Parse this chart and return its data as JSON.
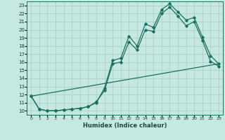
{
  "xlabel": "Humidex (Indice chaleur)",
  "xlim": [
    -0.5,
    23.5
  ],
  "ylim": [
    9.5,
    23.5
  ],
  "xticks": [
    0,
    1,
    2,
    3,
    4,
    5,
    6,
    7,
    8,
    9,
    10,
    11,
    12,
    13,
    14,
    15,
    16,
    17,
    18,
    19,
    20,
    21,
    22,
    23
  ],
  "yticks": [
    10,
    11,
    12,
    13,
    14,
    15,
    16,
    17,
    18,
    19,
    20,
    21,
    22,
    23
  ],
  "bg_color": "#c5e8e0",
  "line_color": "#1a7060",
  "grid_color": "#a8ccc4",
  "line1_x": [
    0,
    1,
    2,
    3,
    4,
    5,
    6,
    7,
    8,
    9,
    10,
    11,
    12,
    13,
    14,
    15,
    16,
    17,
    18,
    19,
    20,
    21,
    22,
    23
  ],
  "line1_y": [
    11.8,
    10.2,
    10.0,
    10.0,
    10.1,
    10.2,
    10.3,
    10.5,
    11.0,
    12.8,
    16.2,
    16.5,
    19.2,
    18.0,
    20.7,
    20.3,
    22.5,
    23.2,
    22.2,
    21.2,
    21.5,
    19.1,
    16.8,
    15.8
  ],
  "line2_x": [
    0,
    1,
    2,
    3,
    4,
    5,
    6,
    7,
    8,
    9,
    10,
    11,
    12,
    13,
    14,
    15,
    16,
    17,
    18,
    19,
    20,
    21,
    22,
    23
  ],
  "line2_y": [
    11.8,
    10.2,
    10.0,
    10.0,
    10.1,
    10.2,
    10.3,
    10.5,
    11.1,
    12.5,
    15.8,
    16.0,
    18.5,
    17.5,
    20.0,
    19.8,
    22.0,
    22.8,
    21.7,
    20.5,
    21.0,
    18.7,
    16.1,
    15.5
  ],
  "line3_x": [
    0,
    23
  ],
  "line3_y": [
    11.8,
    15.8
  ]
}
